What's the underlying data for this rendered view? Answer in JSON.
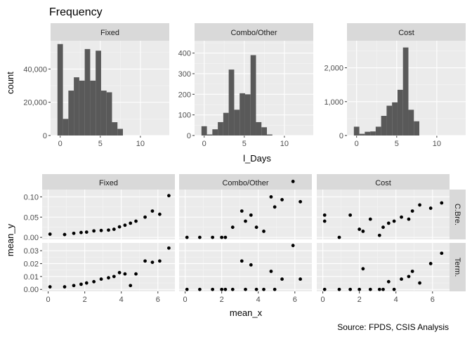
{
  "title": "Frequency",
  "caption": "Source: FPDS, CSIS Analysis",
  "colors": {
    "panel_bg": "#ebebeb",
    "grid_major": "#ffffff",
    "strip_bg": "#d9d9d9",
    "bar_fill": "#595959",
    "point": "#000000"
  },
  "chart_data": [
    {
      "type": "bar",
      "title": "Frequency",
      "xlabel": "l_Days",
      "ylabel": "count",
      "facets": [
        {
          "name": "Fixed",
          "ylim": [
            0,
            57000
          ],
          "yticks": [
            0,
            20000,
            40000
          ],
          "ytick_labels": [
            "0",
            "20,000",
            "40,000"
          ],
          "xlim": [
            -1.2,
            13.6
          ],
          "xticks": [
            0,
            5,
            10
          ],
          "bin_width": 0.68,
          "bin_start": -0.34,
          "values": [
            55000,
            10000,
            27000,
            35000,
            33000,
            52000,
            33000,
            51000,
            27000,
            26000,
            8000,
            4000,
            0,
            0,
            0,
            0,
            0,
            0,
            0,
            0
          ]
        },
        {
          "name": "Combo/Other",
          "ylim": [
            0,
            460
          ],
          "yticks": [
            0,
            100,
            200,
            300,
            400
          ],
          "ytick_labels": [
            "0",
            "100",
            "200",
            "300",
            "400"
          ],
          "xlim": [
            -1.2,
            13.6
          ],
          "xticks": [
            0,
            5,
            10
          ],
          "bin_width": 0.68,
          "bin_start": -0.34,
          "values": [
            45,
            5,
            30,
            65,
            110,
            320,
            125,
            205,
            200,
            390,
            65,
            40,
            5,
            0,
            0,
            0,
            0,
            0,
            0,
            0
          ]
        },
        {
          "name": "Cost",
          "ylim": [
            0,
            2800
          ],
          "yticks": [
            0,
            1000,
            2000
          ],
          "ytick_labels": [
            "0",
            "1,000",
            "2,000"
          ],
          "xlim": [
            -1.2,
            13.6
          ],
          "xticks": [
            0,
            5,
            10
          ],
          "bin_width": 0.68,
          "bin_start": -0.34,
          "values": [
            260,
            50,
            110,
            120,
            260,
            580,
            880,
            980,
            1350,
            2600,
            760,
            420,
            0,
            0,
            0,
            0,
            0,
            0,
            0,
            0
          ]
        }
      ]
    },
    {
      "type": "scatter",
      "xlabel": "mean_x",
      "ylabel": "mean_y",
      "columns": [
        "Fixed",
        "Combo/Other",
        "Cost"
      ],
      "rows": [
        {
          "name": "C.Bre.",
          "ylim": [
            -0.005,
            0.118
          ],
          "yticks": [
            0.0,
            0.05,
            0.1
          ],
          "ytick_labels": [
            "0.00",
            "0.05",
            "0.10"
          ],
          "panels": [
            {
              "x": [
                0.1,
                0.9,
                1.4,
                1.8,
                2.1,
                2.5,
                2.9,
                3.3,
                3.6,
                3.9,
                4.2,
                4.5,
                4.8,
                5.3,
                5.7,
                6.1,
                6.6
              ],
              "y": [
                0.008,
                0.007,
                0.01,
                0.012,
                0.013,
                0.016,
                0.017,
                0.018,
                0.02,
                0.026,
                0.03,
                0.035,
                0.04,
                0.05,
                0.065,
                0.057,
                0.103
              ]
            },
            {
              "x": [
                0.1,
                0.8,
                1.5,
                2.0,
                2.2,
                2.6,
                3.1,
                3.3,
                3.6,
                3.9,
                4.3,
                4.7,
                4.9,
                5.3,
                5.9,
                6.3
              ],
              "y": [
                0.0,
                0.0,
                0.0,
                0.0,
                0.0,
                0.025,
                0.065,
                0.04,
                0.055,
                0.025,
                0.015,
                0.1,
                0.075,
                0.093,
                0.138,
                0.088
              ]
            },
            {
              "x": [
                0.1,
                0.1,
                0.9,
                1.5,
                2.0,
                2.2,
                2.6,
                3.1,
                3.3,
                3.6,
                3.9,
                4.3,
                4.7,
                4.9,
                5.3,
                5.9,
                6.5
              ],
              "y": [
                0.055,
                0.04,
                0.0,
                0.055,
                0.02,
                0.015,
                0.045,
                0.005,
                0.025,
                0.035,
                0.04,
                0.05,
                0.045,
                0.065,
                0.08,
                0.072,
                0.085
              ]
            }
          ]
        },
        {
          "name": "Term.",
          "ylim": [
            -0.0015,
            0.036
          ],
          "yticks": [
            0.0,
            0.01,
            0.02,
            0.03
          ],
          "ytick_labels": [
            "0.00",
            "0.01",
            "0.02",
            "0.03"
          ],
          "panels": [
            {
              "x": [
                0.1,
                0.9,
                1.4,
                1.8,
                2.1,
                2.5,
                2.9,
                3.3,
                3.6,
                3.9,
                4.2,
                4.5,
                4.8,
                5.3,
                5.7,
                6.1,
                6.6
              ],
              "y": [
                0.002,
                0.002,
                0.003,
                0.004,
                0.005,
                0.006,
                0.008,
                0.009,
                0.01,
                0.013,
                0.012,
                0.003,
                0.012,
                0.022,
                0.021,
                0.022,
                0.032
              ]
            },
            {
              "x": [
                0.1,
                0.8,
                1.5,
                2.0,
                2.2,
                2.6,
                3.1,
                3.3,
                3.6,
                3.9,
                4.3,
                4.7,
                4.9,
                5.3,
                5.9,
                6.3
              ],
              "y": [
                0.0,
                0.0,
                0.0,
                0.0,
                0.0,
                0.0,
                0.022,
                0.0,
                0.019,
                0.0,
                0.0,
                0.014,
                0.0,
                0.008,
                0.034,
                0.008
              ]
            },
            {
              "x": [
                0.1,
                0.9,
                1.5,
                2.0,
                2.2,
                2.6,
                3.1,
                3.3,
                3.6,
                3.9,
                4.3,
                4.7,
                4.9,
                5.3,
                5.9,
                6.5
              ],
              "y": [
                0.0,
                0.0,
                0.0,
                0.0,
                0.016,
                0.0,
                0.0,
                0.0,
                0.006,
                0.0,
                0.008,
                0.01,
                0.014,
                0.005,
                0.02,
                0.028
              ]
            }
          ]
        }
      ],
      "xlim": [
        -0.33,
        6.93
      ],
      "xticks": [
        0,
        2,
        4,
        6
      ],
      "xtick_labels": [
        "0",
        "2",
        "4",
        "6"
      ]
    }
  ]
}
